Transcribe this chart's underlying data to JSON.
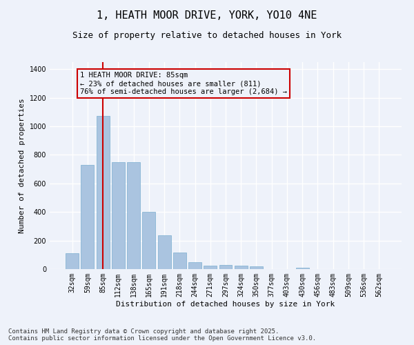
{
  "title": "1, HEATH MOOR DRIVE, YORK, YO10 4NE",
  "subtitle": "Size of property relative to detached houses in York",
  "xlabel": "Distribution of detached houses by size in York",
  "ylabel": "Number of detached properties",
  "categories": [
    "32sqm",
    "59sqm",
    "85sqm",
    "112sqm",
    "138sqm",
    "165sqm",
    "191sqm",
    "218sqm",
    "244sqm",
    "271sqm",
    "297sqm",
    "324sqm",
    "350sqm",
    "377sqm",
    "403sqm",
    "430sqm",
    "456sqm",
    "483sqm",
    "509sqm",
    "536sqm",
    "562sqm"
  ],
  "values": [
    110,
    730,
    1075,
    750,
    750,
    400,
    235,
    115,
    50,
    22,
    28,
    22,
    18,
    0,
    0,
    10,
    0,
    0,
    0,
    0,
    0
  ],
  "bar_color": "#aac4e0",
  "bar_edge_color": "#7aaed0",
  "highlight_bar_index": 2,
  "highlight_line_color": "#cc0000",
  "annotation_text": "1 HEATH MOOR DRIVE: 85sqm\n← 23% of detached houses are smaller (811)\n76% of semi-detached houses are larger (2,684) →",
  "annotation_box_color": "#cc0000",
  "ylim": [
    0,
    1450
  ],
  "yticks": [
    0,
    200,
    400,
    600,
    800,
    1000,
    1200,
    1400
  ],
  "background_color": "#eef2fa",
  "grid_color": "#ffffff",
  "footer_text": "Contains HM Land Registry data © Crown copyright and database right 2025.\nContains public sector information licensed under the Open Government Licence v3.0.",
  "title_fontsize": 11,
  "subtitle_fontsize": 9,
  "label_fontsize": 8,
  "tick_fontsize": 7,
  "footer_fontsize": 6.5,
  "annotation_fontsize": 7.5
}
